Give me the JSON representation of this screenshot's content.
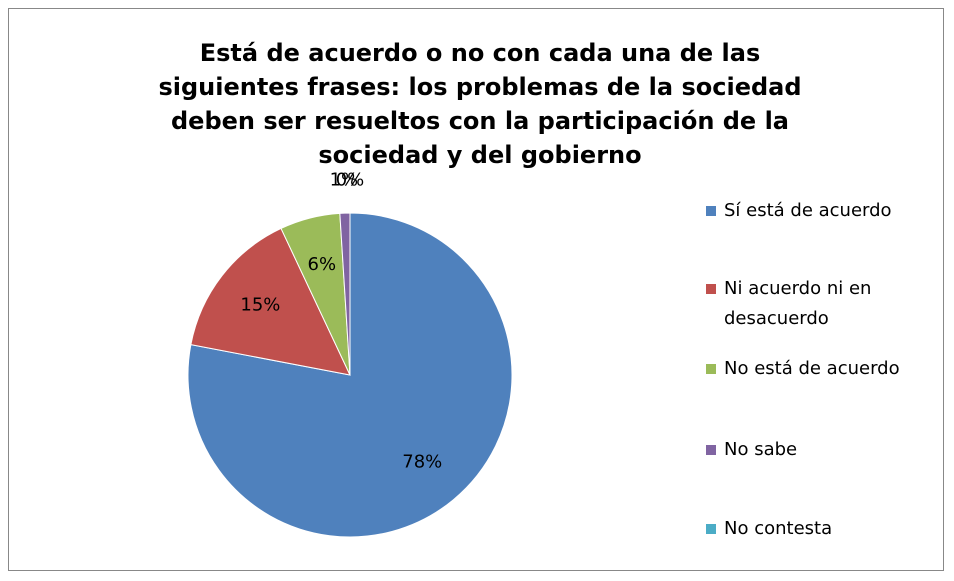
{
  "chart_data": {
    "type": "pie",
    "title": "Está de acuerdo o no con cada una de las siguientes frases: los problemas de la sociedad deben ser resueltos con la participación de la sociedad y del gobierno",
    "categories": [
      "Sí está de acuerdo",
      "Ni acuerdo ni en desacuerdo",
      "No está de acuerdo",
      "No sabe",
      "No contesta"
    ],
    "values": [
      78,
      15,
      6,
      1,
      0
    ],
    "value_labels": [
      "78%",
      "15%",
      "6%",
      "1%",
      "0%"
    ],
    "colors": [
      "#4f81bd",
      "#c0504d",
      "#9bbb59",
      "#8064a2",
      "#4bacc6"
    ],
    "legend": "right"
  }
}
